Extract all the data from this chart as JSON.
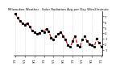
{
  "title": "Milwaukee Weather - Solar Radiation Avg per Day W/m2/minute",
  "x_labels": [
    "1/1",
    "",
    "",
    "",
    "5/1",
    "",
    "",
    "",
    "9/1",
    "",
    "",
    "",
    "1/1",
    "",
    "",
    "",
    "5/1",
    "",
    "",
    "",
    "9/1",
    "",
    "",
    "",
    "1/1",
    "",
    "",
    "",
    "5/1",
    "",
    "",
    "",
    "9/1",
    "",
    "",
    "",
    "1/1"
  ],
  "y_values": [
    7.5,
    6.8,
    6.2,
    5.8,
    5.5,
    5.8,
    5.2,
    4.5,
    4.2,
    3.8,
    4.0,
    4.5,
    4.2,
    4.8,
    4.3,
    3.2,
    2.8,
    3.5,
    3.8,
    4.2,
    3.5,
    2.8,
    1.8,
    1.5,
    2.5,
    3.5,
    1.8,
    1.5,
    2.8,
    3.5,
    2.5,
    2.0,
    1.8,
    1.5,
    3.0,
    2.2,
    1.5
  ],
  "line_color": "#CC0000",
  "marker_color": "#000000",
  "bg_color": "#ffffff",
  "ylim": [
    0,
    8
  ],
  "yticks": [
    1,
    2,
    3,
    4,
    5,
    6,
    7
  ],
  "grid_color": "#bbbbbb",
  "line_style": "--",
  "line_width": 0.8,
  "marker": "s",
  "marker_size": 1.2,
  "title_fontsize": 2.8
}
